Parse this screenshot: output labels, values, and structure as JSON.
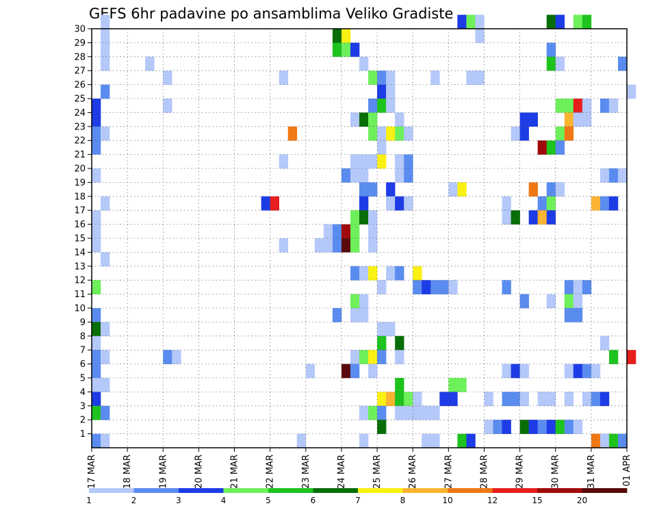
{
  "chart_data": {
    "type": "heatmap",
    "title": "GEFS 6hr padavine po ansamblima Veliko Gradiste",
    "xlabel": "",
    "ylabel": "",
    "x_tick_labels": [
      "17 MAR",
      "18 MAR",
      "19 MAR",
      "20 MAR",
      "21 MAR",
      "22 MAR",
      "23 MAR",
      "24 MAR",
      "25 MAR",
      "26 MAR",
      "27 MAR",
      "28 MAR",
      "29 MAR",
      "30 MAR",
      "31 MAR",
      "01 APR"
    ],
    "x_range_days": [
      0,
      15
    ],
    "step_hours": 6,
    "y_ticks": [
      1,
      2,
      3,
      4,
      5,
      6,
      7,
      8,
      9,
      10,
      11,
      12,
      13,
      14,
      15,
      16,
      17,
      18,
      19,
      20,
      21,
      22,
      23,
      24,
      25,
      26,
      27,
      28,
      29,
      30
    ],
    "y_range": [
      0,
      30
    ],
    "grid": true,
    "legend": {
      "placement": "bottom",
      "bin_labels": [
        "1",
        "2",
        "3",
        "4",
        "5",
        "6",
        "7",
        "8",
        "10",
        "12",
        "15",
        "20"
      ],
      "colors": [
        "#b4c8fa",
        "#5a8cf0",
        "#1e3ce6",
        "#6ef05a",
        "#1ec31e",
        "#086e08",
        "#faf014",
        "#fab432",
        "#f07814",
        "#e61e1e",
        "#a00a0a",
        "#5a0a0a"
      ]
    },
    "cells": [
      {
        "m": 30,
        "s": 1,
        "c": 0
      },
      {
        "m": 30,
        "s": 41,
        "c": 2
      },
      {
        "m": 30,
        "s": 42,
        "c": 3
      },
      {
        "m": 30,
        "s": 43,
        "c": 0
      },
      {
        "m": 30,
        "s": 51,
        "c": 5
      },
      {
        "m": 30,
        "s": 52,
        "c": 2
      },
      {
        "m": 30,
        "s": 54,
        "c": 3
      },
      {
        "m": 30,
        "s": 55,
        "c": 4
      },
      {
        "m": 29,
        "s": 1,
        "c": 0
      },
      {
        "m": 29,
        "s": 27,
        "c": 5
      },
      {
        "m": 29,
        "s": 28,
        "c": 6
      },
      {
        "m": 29,
        "s": 43,
        "c": 0
      },
      {
        "m": 28,
        "s": 1,
        "c": 0
      },
      {
        "m": 28,
        "s": 27,
        "c": 4
      },
      {
        "m": 28,
        "s": 28,
        "c": 3
      },
      {
        "m": 28,
        "s": 29,
        "c": 2
      },
      {
        "m": 28,
        "s": 51,
        "c": 1
      },
      {
        "m": 27,
        "s": 1,
        "c": 0
      },
      {
        "m": 27,
        "s": 6,
        "c": 0
      },
      {
        "m": 27,
        "s": 30,
        "c": 0
      },
      {
        "m": 27,
        "s": 51,
        "c": 4
      },
      {
        "m": 27,
        "s": 52,
        "c": 0
      },
      {
        "m": 27,
        "s": 59,
        "c": 1
      },
      {
        "m": 26,
        "s": 8,
        "c": 0
      },
      {
        "m": 26,
        "s": 21,
        "c": 0
      },
      {
        "m": 26,
        "s": 31,
        "c": 3
      },
      {
        "m": 26,
        "s": 32,
        "c": 1
      },
      {
        "m": 26,
        "s": 33,
        "c": 0
      },
      {
        "m": 26,
        "s": 38,
        "c": 0
      },
      {
        "m": 26,
        "s": 42,
        "c": 0
      },
      {
        "m": 26,
        "s": 43,
        "c": 0
      },
      {
        "m": 25,
        "s": 1,
        "c": 1
      },
      {
        "m": 25,
        "s": 32,
        "c": 2
      },
      {
        "m": 25,
        "s": 33,
        "c": 0
      },
      {
        "m": 25,
        "s": 60,
        "c": 0
      },
      {
        "m": 24,
        "s": 0,
        "c": 2
      },
      {
        "m": 24,
        "s": 8,
        "c": 0
      },
      {
        "m": 24,
        "s": 31,
        "c": 1
      },
      {
        "m": 24,
        "s": 32,
        "c": 4
      },
      {
        "m": 24,
        "s": 33,
        "c": 0
      },
      {
        "m": 24,
        "s": 52,
        "c": 3
      },
      {
        "m": 24,
        "s": 53,
        "c": 3
      },
      {
        "m": 24,
        "s": 54,
        "c": 9
      },
      {
        "m": 24,
        "s": 55,
        "c": 0
      },
      {
        "m": 24,
        "s": 57,
        "c": 1
      },
      {
        "m": 24,
        "s": 58,
        "c": 0
      },
      {
        "m": 23,
        "s": 0,
        "c": 2
      },
      {
        "m": 23,
        "s": 29,
        "c": 0
      },
      {
        "m": 23,
        "s": 30,
        "c": 5
      },
      {
        "m": 23,
        "s": 31,
        "c": 3
      },
      {
        "m": 23,
        "s": 34,
        "c": 0
      },
      {
        "m": 23,
        "s": 48,
        "c": 2
      },
      {
        "m": 23,
        "s": 49,
        "c": 2
      },
      {
        "m": 23,
        "s": 53,
        "c": 7
      },
      {
        "m": 23,
        "s": 54,
        "c": 0
      },
      {
        "m": 23,
        "s": 55,
        "c": 0
      },
      {
        "m": 22,
        "s": 0,
        "c": 1
      },
      {
        "m": 22,
        "s": 1,
        "c": 0
      },
      {
        "m": 22,
        "s": 22,
        "c": 8
      },
      {
        "m": 22,
        "s": 31,
        "c": 3
      },
      {
        "m": 22,
        "s": 32,
        "c": 0
      },
      {
        "m": 22,
        "s": 33,
        "c": 6
      },
      {
        "m": 22,
        "s": 34,
        "c": 3
      },
      {
        "m": 22,
        "s": 35,
        "c": 0
      },
      {
        "m": 22,
        "s": 47,
        "c": 0
      },
      {
        "m": 22,
        "s": 48,
        "c": 2
      },
      {
        "m": 22,
        "s": 52,
        "c": 3
      },
      {
        "m": 22,
        "s": 53,
        "c": 8
      },
      {
        "m": 21,
        "s": 0,
        "c": 1
      },
      {
        "m": 21,
        "s": 32,
        "c": 0
      },
      {
        "m": 21,
        "s": 50,
        "c": 10
      },
      {
        "m": 21,
        "s": 51,
        "c": 4
      },
      {
        "m": 21,
        "s": 52,
        "c": 1
      },
      {
        "m": 20,
        "s": 21,
        "c": 0
      },
      {
        "m": 20,
        "s": 29,
        "c": 0
      },
      {
        "m": 20,
        "s": 30,
        "c": 0
      },
      {
        "m": 20,
        "s": 31,
        "c": 0
      },
      {
        "m": 20,
        "s": 32,
        "c": 6
      },
      {
        "m": 20,
        "s": 34,
        "c": 0
      },
      {
        "m": 20,
        "s": 35,
        "c": 1
      },
      {
        "m": 19,
        "s": 0,
        "c": 0
      },
      {
        "m": 19,
        "s": 28,
        "c": 1
      },
      {
        "m": 19,
        "s": 29,
        "c": 0
      },
      {
        "m": 19,
        "s": 30,
        "c": 0
      },
      {
        "m": 19,
        "s": 34,
        "c": 0
      },
      {
        "m": 19,
        "s": 35,
        "c": 1
      },
      {
        "m": 19,
        "s": 57,
        "c": 0
      },
      {
        "m": 19,
        "s": 58,
        "c": 1
      },
      {
        "m": 19,
        "s": 59,
        "c": 0
      },
      {
        "m": 18,
        "s": 30,
        "c": 1
      },
      {
        "m": 18,
        "s": 31,
        "c": 1
      },
      {
        "m": 18,
        "s": 33,
        "c": 2
      },
      {
        "m": 18,
        "s": 40,
        "c": 0
      },
      {
        "m": 18,
        "s": 41,
        "c": 6
      },
      {
        "m": 18,
        "s": 49,
        "c": 8
      },
      {
        "m": 18,
        "s": 51,
        "c": 1
      },
      {
        "m": 18,
        "s": 52,
        "c": 0
      },
      {
        "m": 17,
        "s": 1,
        "c": 0
      },
      {
        "m": 17,
        "s": 19,
        "c": 2
      },
      {
        "m": 17,
        "s": 20,
        "c": 9
      },
      {
        "m": 17,
        "s": 30,
        "c": 2
      },
      {
        "m": 17,
        "s": 33,
        "c": 0
      },
      {
        "m": 17,
        "s": 34,
        "c": 2
      },
      {
        "m": 17,
        "s": 35,
        "c": 0
      },
      {
        "m": 17,
        "s": 46,
        "c": 0
      },
      {
        "m": 17,
        "s": 50,
        "c": 1
      },
      {
        "m": 17,
        "s": 51,
        "c": 3
      },
      {
        "m": 17,
        "s": 56,
        "c": 7
      },
      {
        "m": 17,
        "s": 57,
        "c": 1
      },
      {
        "m": 17,
        "s": 58,
        "c": 2
      },
      {
        "m": 16,
        "s": 0,
        "c": 0
      },
      {
        "m": 16,
        "s": 29,
        "c": 3
      },
      {
        "m": 16,
        "s": 30,
        "c": 5
      },
      {
        "m": 16,
        "s": 31,
        "c": 0
      },
      {
        "m": 16,
        "s": 46,
        "c": 0
      },
      {
        "m": 16,
        "s": 47,
        "c": 5
      },
      {
        "m": 16,
        "s": 49,
        "c": 2
      },
      {
        "m": 16,
        "s": 50,
        "c": 7
      },
      {
        "m": 16,
        "s": 51,
        "c": 2
      },
      {
        "m": 15,
        "s": 0,
        "c": 0
      },
      {
        "m": 15,
        "s": 26,
        "c": 0
      },
      {
        "m": 15,
        "s": 27,
        "c": 1
      },
      {
        "m": 15,
        "s": 28,
        "c": 10
      },
      {
        "m": 15,
        "s": 29,
        "c": 3
      },
      {
        "m": 15,
        "s": 31,
        "c": 0
      },
      {
        "m": 14,
        "s": 0,
        "c": 0
      },
      {
        "m": 14,
        "s": 21,
        "c": 0
      },
      {
        "m": 14,
        "s": 25,
        "c": 0
      },
      {
        "m": 14,
        "s": 26,
        "c": 0
      },
      {
        "m": 14,
        "s": 27,
        "c": 1
      },
      {
        "m": 14,
        "s": 28,
        "c": 11
      },
      {
        "m": 14,
        "s": 29,
        "c": 3
      },
      {
        "m": 14,
        "s": 31,
        "c": 0
      },
      {
        "m": 13,
        "s": 1,
        "c": 0
      },
      {
        "m": 12,
        "s": 29,
        "c": 1
      },
      {
        "m": 12,
        "s": 30,
        "c": 0
      },
      {
        "m": 12,
        "s": 31,
        "c": 6
      },
      {
        "m": 12,
        "s": 33,
        "c": 0
      },
      {
        "m": 12,
        "s": 34,
        "c": 1
      },
      {
        "m": 12,
        "s": 36,
        "c": 6
      },
      {
        "m": 11,
        "s": 0,
        "c": 3
      },
      {
        "m": 11,
        "s": 32,
        "c": 0
      },
      {
        "m": 11,
        "s": 36,
        "c": 1
      },
      {
        "m": 11,
        "s": 37,
        "c": 2
      },
      {
        "m": 11,
        "s": 38,
        "c": 1
      },
      {
        "m": 11,
        "s": 39,
        "c": 1
      },
      {
        "m": 11,
        "s": 40,
        "c": 0
      },
      {
        "m": 11,
        "s": 46,
        "c": 1
      },
      {
        "m": 11,
        "s": 53,
        "c": 1
      },
      {
        "m": 11,
        "s": 54,
        "c": 0
      },
      {
        "m": 11,
        "s": 55,
        "c": 1
      },
      {
        "m": 10,
        "s": 29,
        "c": 3
      },
      {
        "m": 10,
        "s": 30,
        "c": 0
      },
      {
        "m": 10,
        "s": 48,
        "c": 1
      },
      {
        "m": 10,
        "s": 51,
        "c": 0
      },
      {
        "m": 10,
        "s": 53,
        "c": 3
      },
      {
        "m": 10,
        "s": 54,
        "c": 0
      },
      {
        "m": 9,
        "s": 0,
        "c": 1
      },
      {
        "m": 9,
        "s": 27,
        "c": 1
      },
      {
        "m": 9,
        "s": 29,
        "c": 0
      },
      {
        "m": 9,
        "s": 30,
        "c": 0
      },
      {
        "m": 9,
        "s": 53,
        "c": 1
      },
      {
        "m": 9,
        "s": 54,
        "c": 1
      },
      {
        "m": 8,
        "s": 0,
        "c": 5
      },
      {
        "m": 8,
        "s": 1,
        "c": 0
      },
      {
        "m": 8,
        "s": 32,
        "c": 0
      },
      {
        "m": 8,
        "s": 33,
        "c": 0
      },
      {
        "m": 7,
        "s": 0,
        "c": 0
      },
      {
        "m": 7,
        "s": 32,
        "c": 4
      },
      {
        "m": 7,
        "s": 34,
        "c": 5
      },
      {
        "m": 7,
        "s": 57,
        "c": 0
      },
      {
        "m": 6,
        "s": 0,
        "c": 1
      },
      {
        "m": 6,
        "s": 1,
        "c": 0
      },
      {
        "m": 6,
        "s": 8,
        "c": 1
      },
      {
        "m": 6,
        "s": 9,
        "c": 0
      },
      {
        "m": 6,
        "s": 29,
        "c": 0
      },
      {
        "m": 6,
        "s": 30,
        "c": 3
      },
      {
        "m": 6,
        "s": 31,
        "c": 6
      },
      {
        "m": 6,
        "s": 32,
        "c": 1
      },
      {
        "m": 6,
        "s": 34,
        "c": 0
      },
      {
        "m": 6,
        "s": 58,
        "c": 4
      },
      {
        "m": 6,
        "s": 60,
        "c": 9
      },
      {
        "m": 5,
        "s": 0,
        "c": 1
      },
      {
        "m": 5,
        "s": 24,
        "c": 0
      },
      {
        "m": 5,
        "s": 28,
        "c": 11
      },
      {
        "m": 5,
        "s": 29,
        "c": 1
      },
      {
        "m": 5,
        "s": 31,
        "c": 0
      },
      {
        "m": 5,
        "s": 46,
        "c": 0
      },
      {
        "m": 5,
        "s": 47,
        "c": 2
      },
      {
        "m": 5,
        "s": 48,
        "c": 0
      },
      {
        "m": 5,
        "s": 53,
        "c": 0
      },
      {
        "m": 5,
        "s": 54,
        "c": 2
      },
      {
        "m": 5,
        "s": 55,
        "c": 1
      },
      {
        "m": 5,
        "s": 56,
        "c": 0
      },
      {
        "m": 4,
        "s": 0,
        "c": 0
      },
      {
        "m": 4,
        "s": 1,
        "c": 0
      },
      {
        "m": 4,
        "s": 34,
        "c": 4
      },
      {
        "m": 4,
        "s": 40,
        "c": 3
      },
      {
        "m": 4,
        "s": 41,
        "c": 3
      },
      {
        "m": 3,
        "s": 0,
        "c": 2
      },
      {
        "m": 3,
        "s": 32,
        "c": 6
      },
      {
        "m": 3,
        "s": 33,
        "c": 7
      },
      {
        "m": 3,
        "s": 34,
        "c": 4
      },
      {
        "m": 3,
        "s": 35,
        "c": 3
      },
      {
        "m": 3,
        "s": 36,
        "c": 0
      },
      {
        "m": 3,
        "s": 39,
        "c": 2
      },
      {
        "m": 3,
        "s": 40,
        "c": 2
      },
      {
        "m": 3,
        "s": 44,
        "c": 0
      },
      {
        "m": 3,
        "s": 46,
        "c": 1
      },
      {
        "m": 3,
        "s": 47,
        "c": 1
      },
      {
        "m": 3,
        "s": 48,
        "c": 0
      },
      {
        "m": 3,
        "s": 50,
        "c": 0
      },
      {
        "m": 3,
        "s": 51,
        "c": 0
      },
      {
        "m": 3,
        "s": 53,
        "c": 0
      },
      {
        "m": 3,
        "s": 55,
        "c": 0
      },
      {
        "m": 3,
        "s": 56,
        "c": 1
      },
      {
        "m": 3,
        "s": 57,
        "c": 2
      },
      {
        "m": 2,
        "s": 0,
        "c": 4
      },
      {
        "m": 2,
        "s": 1,
        "c": 1
      },
      {
        "m": 2,
        "s": 30,
        "c": 0
      },
      {
        "m": 2,
        "s": 31,
        "c": 3
      },
      {
        "m": 2,
        "s": 32,
        "c": 1
      },
      {
        "m": 2,
        "s": 34,
        "c": 0
      },
      {
        "m": 2,
        "s": 35,
        "c": 0
      },
      {
        "m": 2,
        "s": 36,
        "c": 0
      },
      {
        "m": 2,
        "s": 37,
        "c": 0
      },
      {
        "m": 2,
        "s": 38,
        "c": 0
      },
      {
        "m": 1,
        "s": 32,
        "c": 5
      },
      {
        "m": 1,
        "s": 44,
        "c": 0
      },
      {
        "m": 1,
        "s": 45,
        "c": 1
      },
      {
        "m": 1,
        "s": 46,
        "c": 2
      },
      {
        "m": 1,
        "s": 48,
        "c": 5
      },
      {
        "m": 1,
        "s": 49,
        "c": 2
      },
      {
        "m": 1,
        "s": 50,
        "c": 1
      },
      {
        "m": 1,
        "s": 51,
        "c": 2
      },
      {
        "m": 1,
        "s": 52,
        "c": 4
      },
      {
        "m": 1,
        "s": 53,
        "c": 1
      },
      {
        "m": 1,
        "s": 54,
        "c": 0
      },
      {
        "m": 0,
        "s": 0,
        "c": 1
      },
      {
        "m": 0,
        "s": 1,
        "c": 0
      },
      {
        "m": 0,
        "s": 23,
        "c": 0
      },
      {
        "m": 0,
        "s": 30,
        "c": 0
      },
      {
        "m": 0,
        "s": 37,
        "c": 0
      },
      {
        "m": 0,
        "s": 38,
        "c": 0
      },
      {
        "m": 0,
        "s": 41,
        "c": 4
      },
      {
        "m": 0,
        "s": 42,
        "c": 2
      },
      {
        "m": 0,
        "s": 56,
        "c": 8
      },
      {
        "m": 0,
        "s": 57,
        "c": 0
      },
      {
        "m": 0,
        "s": 58,
        "c": 4
      },
      {
        "m": 0,
        "s": 59,
        "c": 1
      }
    ]
  }
}
